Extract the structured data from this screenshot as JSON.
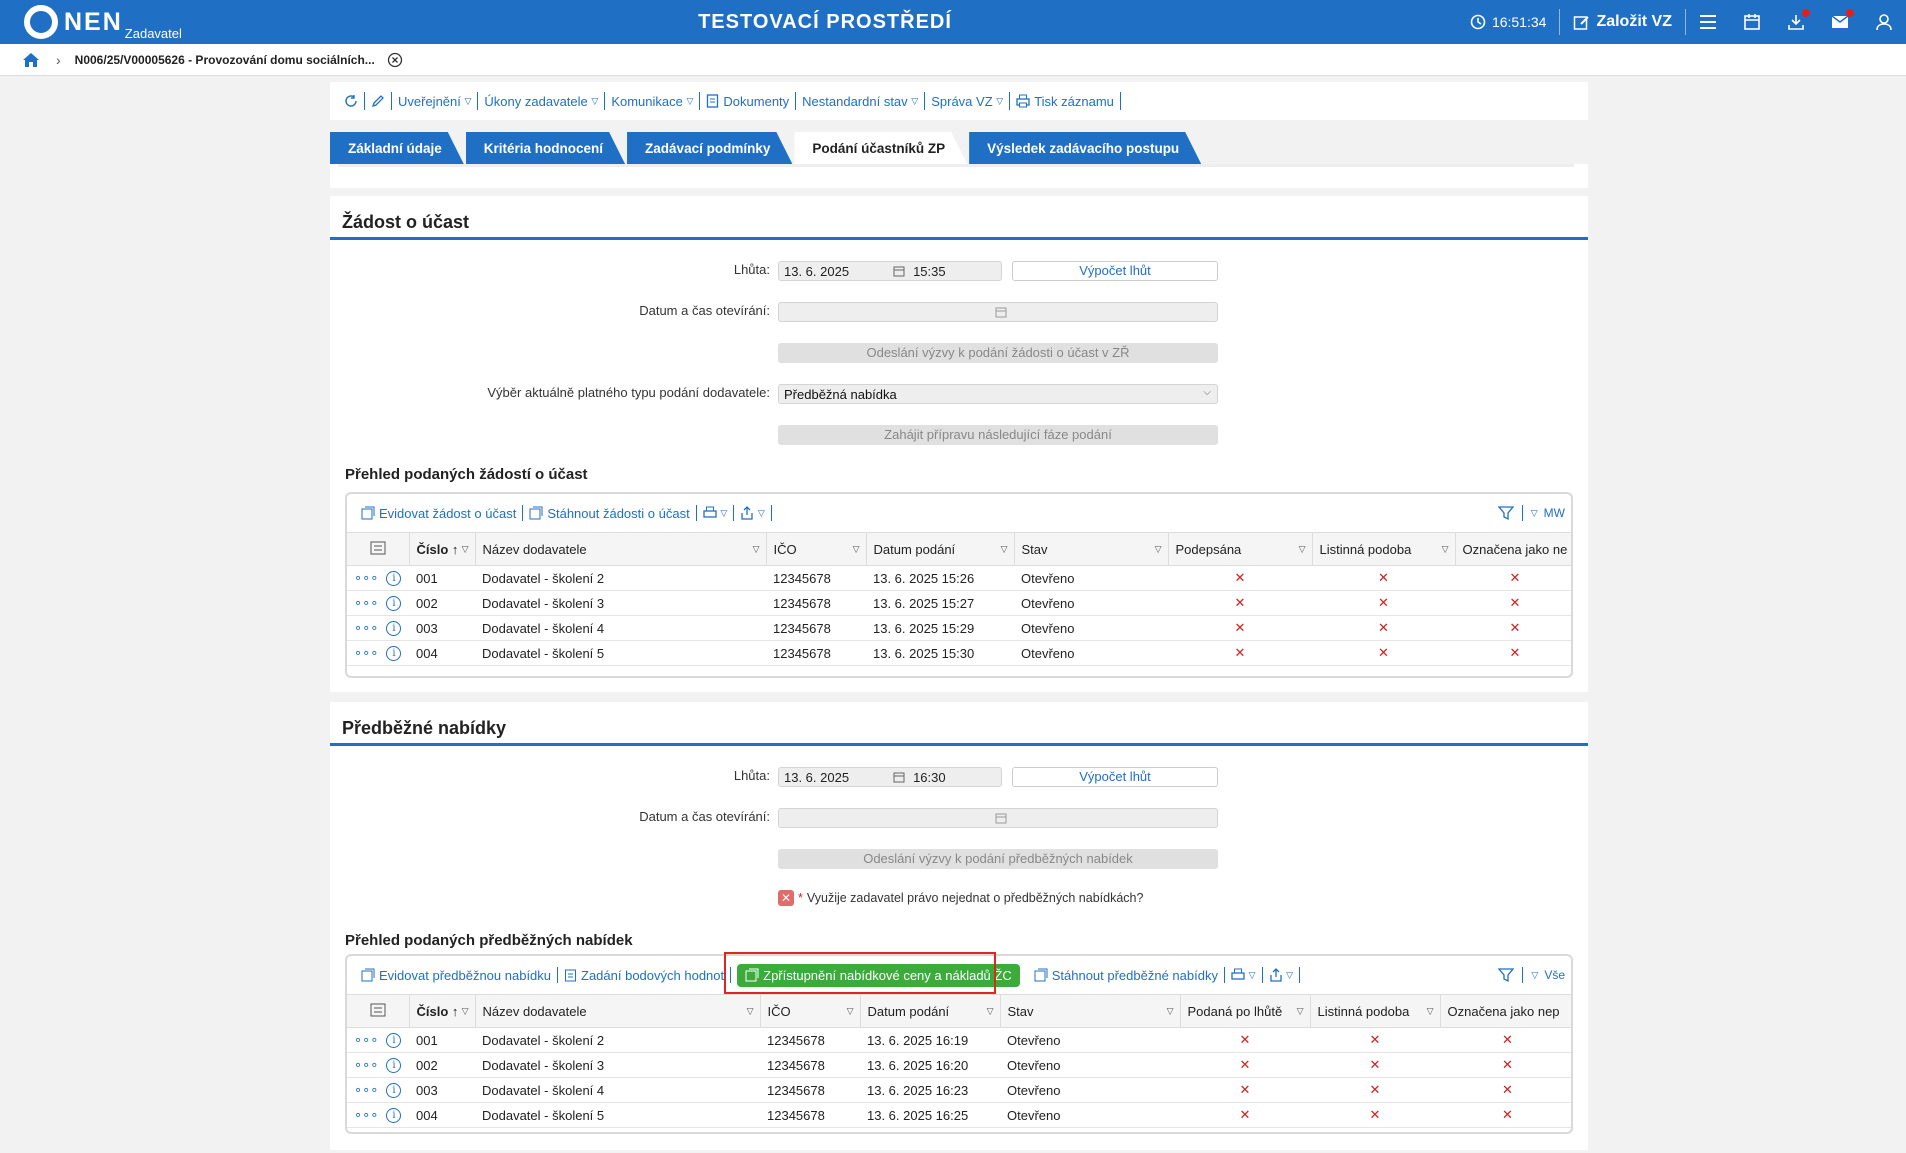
{
  "app": {
    "brand": "NEN",
    "brand_sub": "Zadavatel",
    "env_title": "TESTOVACÍ PROSTŘEDÍ",
    "time": "16:51:34",
    "create_label": "Založit VZ"
  },
  "breadcrumb": {
    "text": "N006/25/V00005626 - Provozování domu sociálních..."
  },
  "toolbar": {
    "items": [
      "Uveřejnění",
      "Úkony zadavatele",
      "Komunikace",
      "Dokumenty",
      "Nestandardní stav",
      "Správa VZ",
      "Tisk záznamu"
    ]
  },
  "tabs": [
    "Základní údaje",
    "Kritéria hodnocení",
    "Zadávací podmínky",
    "Podání účastníků ZP",
    "Výsledek zadávacího postupu"
  ],
  "zadost": {
    "title": "Žádost o účast",
    "lhuta_label": "Lhůta:",
    "lhuta_date": "13. 6. 2025",
    "lhuta_time": "15:35",
    "vypocet": "Výpočet lhůt",
    "otevirani_label": "Datum a čas otevírání:",
    "odeslani": "Odeslání výzvy k podání žádosti o účast v ZŘ",
    "vyber_label": "Výběr aktuálně platného typu podání dodavatele:",
    "vyber_value": "Předběžná nabídka",
    "zahajit": "Zahájit přípravu následující fáze podání",
    "subhead": "Přehled podaných žádostí o účast",
    "tool1": "Evidovat žádost o účast",
    "tool2": "Stáhnout žádosti o účast",
    "mw": "MW",
    "columns": [
      "Číslo",
      "Název dodavatele",
      "IČO",
      "Datum podání",
      "Stav",
      "Podepsána",
      "Listinná podoba",
      "Označena jako ne"
    ],
    "rows": [
      {
        "cislo": "001",
        "nazev": "Dodavatel - školení 2",
        "ico": "12345678",
        "datum": "13. 6. 2025 15:26",
        "stav": "Otevřeno"
      },
      {
        "cislo": "002",
        "nazev": "Dodavatel - školení 3",
        "ico": "12345678",
        "datum": "13. 6. 2025 15:27",
        "stav": "Otevřeno"
      },
      {
        "cislo": "003",
        "nazev": "Dodavatel - školení 4",
        "ico": "12345678",
        "datum": "13. 6. 2025 15:29",
        "stav": "Otevřeno"
      },
      {
        "cislo": "004",
        "nazev": "Dodavatel - školení 5",
        "ico": "12345678",
        "datum": "13. 6. 2025 15:30",
        "stav": "Otevřeno"
      }
    ]
  },
  "predbezne": {
    "title": "Předběžné nabídky",
    "lhuta_label": "Lhůta:",
    "lhuta_date": "13. 6. 2025",
    "lhuta_time": "16:30",
    "vypocet": "Výpočet lhůt",
    "otevirani_label": "Datum a čas otevírání:",
    "odeslani": "Odeslání výzvy k podání předběžných nabídek",
    "pravo": "Využije zadavatel právo nejednat o předběžných nabídkách?",
    "subhead": "Přehled podaných předběžných nabídek",
    "tool1": "Evidovat předběžnou nabídku",
    "tool2": "Zadání bodových hodnot",
    "tool3": "Zpřístupnění nabídkové ceny a nákladů ŽC",
    "tool4": "Stáhnout předběžné nabídky",
    "vse": "Vše",
    "columns": [
      "Číslo",
      "Název dodavatele",
      "IČO",
      "Datum podání",
      "Stav",
      "Podaná po lhůtě",
      "Listinná podoba",
      "Označena jako nep"
    ],
    "rows": [
      {
        "cislo": "001",
        "nazev": "Dodavatel - školení 2",
        "ico": "12345678",
        "datum": "13. 6. 2025 16:19",
        "stav": "Otevřeno"
      },
      {
        "cislo": "002",
        "nazev": "Dodavatel - školení 3",
        "ico": "12345678",
        "datum": "13. 6. 2025 16:20",
        "stav": "Otevřeno"
      },
      {
        "cislo": "003",
        "nazev": "Dodavatel - školení 4",
        "ico": "12345678",
        "datum": "13. 6. 2025 16:23",
        "stav": "Otevřeno"
      },
      {
        "cislo": "004",
        "nazev": "Dodavatel - školení 5",
        "ico": "12345678",
        "datum": "13. 6. 2025 16:25",
        "stav": "Otevřeno"
      }
    ]
  },
  "colors": {
    "primary": "#1f6fc5",
    "green": "#3cab3c",
    "red": "#e02525"
  }
}
